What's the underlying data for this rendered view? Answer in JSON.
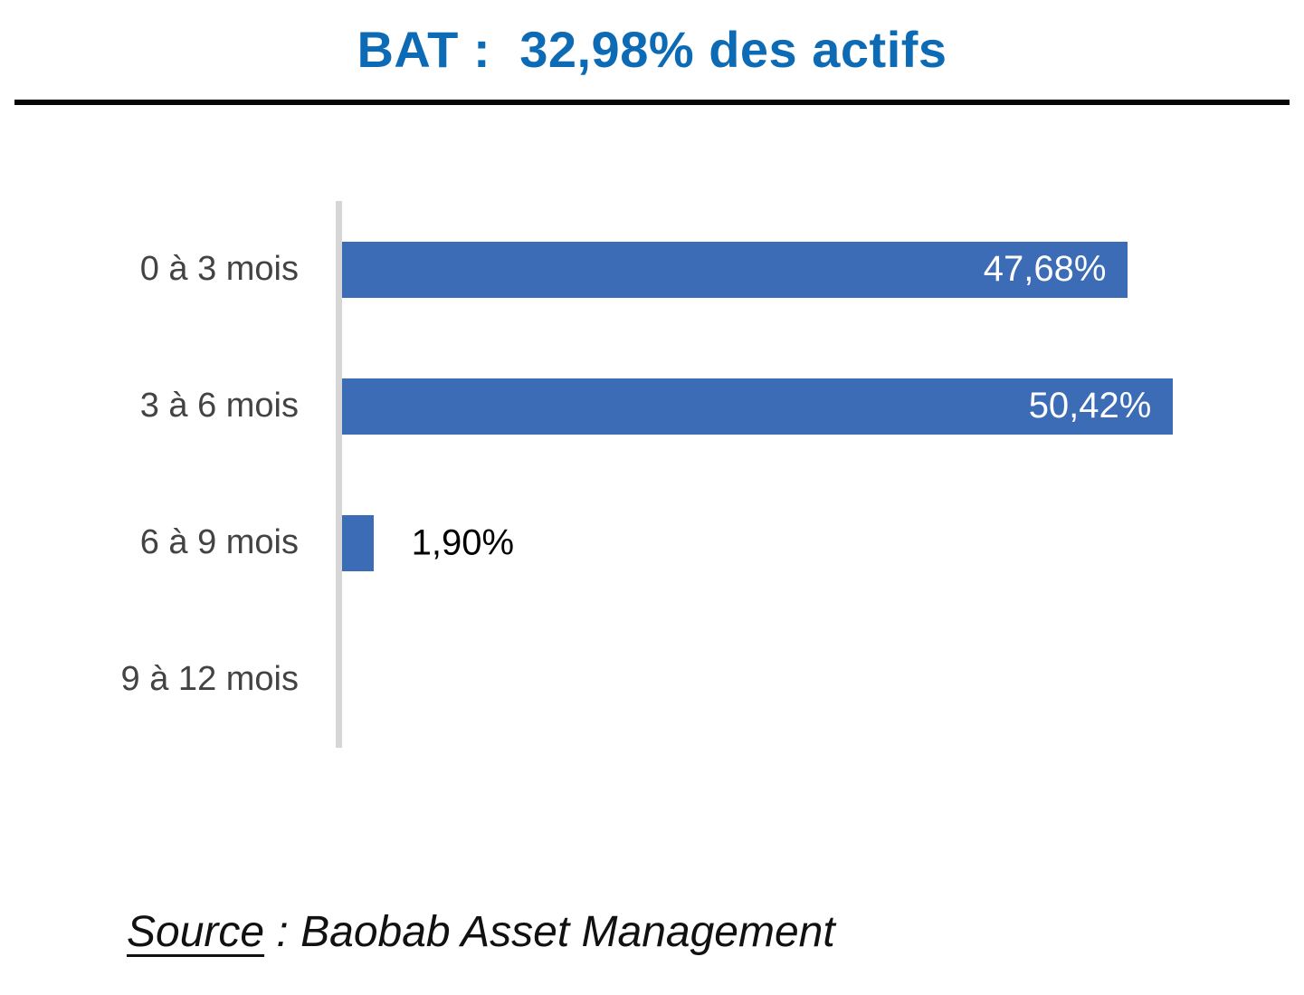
{
  "header": {
    "title": "BAT :  32,98% des actifs"
  },
  "chart_data": {
    "type": "bar",
    "orientation": "horizontal",
    "title": "BAT :  32,98% des actifs",
    "categories": [
      "0 à 3 mois",
      "3 à 6 mois",
      "6 à 9 mois",
      "9 à 12 mois"
    ],
    "values": [
      47.68,
      50.42,
      1.9,
      0
    ],
    "data_labels": [
      "47,68%",
      "50,42%",
      "1,90%",
      ""
    ],
    "xlabel": "",
    "ylabel": "",
    "xlim": [
      0,
      56
    ],
    "grid": false,
    "legend": false,
    "bar_color": "#3C6CB6",
    "data_label_color_inside": "#FFFFFF",
    "data_label_color_outside": "#000000",
    "category_label_color": "#434343",
    "axis_line_color": "#D6D6D6",
    "title_color": "#0D6BB5"
  },
  "footer": {
    "source_label": "Source",
    "source_separator": " : ",
    "source_text": "Baobab Asset Management"
  }
}
